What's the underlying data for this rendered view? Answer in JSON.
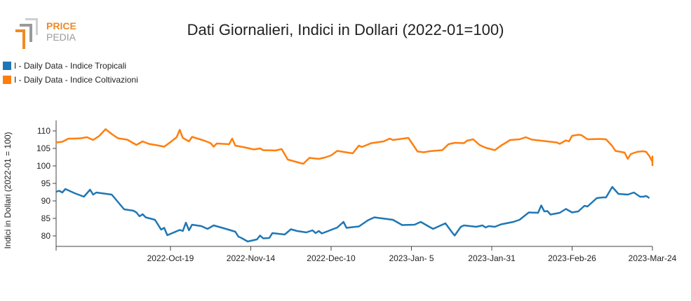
{
  "brand": {
    "line1": "PRICE",
    "line2": "PEDIA"
  },
  "chart_data": {
    "type": "line",
    "title": "Dati Giornalieri, Indici in Dollari (2022-01=100)",
    "xlabel": "",
    "ylabel": "Indici in Dollari (2022-01 = 100)",
    "ylim": [
      77,
      113
    ],
    "yticks": [
      80,
      85,
      90,
      95,
      100,
      105,
      110
    ],
    "xlim": [
      "2022-09-12",
      "2023-03-24"
    ],
    "xticks": [
      {
        "date": "2022-10-19",
        "label": "2022-Oct-19"
      },
      {
        "date": "2022-11-14",
        "label": "2022-Nov-14"
      },
      {
        "date": "2022-12-10",
        "label": "2022-Dec-10"
      },
      {
        "date": "2023-01-05",
        "label": "2023-Jan- 5"
      },
      {
        "date": "2023-01-31",
        "label": "2023-Jan-31"
      },
      {
        "date": "2023-02-26",
        "label": "2023-Feb-26"
      },
      {
        "date": "2023-03-24",
        "label": "2023-Mar-24"
      }
    ],
    "grid": false,
    "legend_position": "top-left",
    "series": [
      {
        "name": "I - Daily Data - Indice Tropicali",
        "color": "#1f77b4",
        "points": [
          [
            "2022-09-12",
            92.6
          ],
          [
            "2022-09-13",
            92.9
          ],
          [
            "2022-09-14",
            92.4
          ],
          [
            "2022-09-15",
            93.4
          ],
          [
            "2022-09-16",
            93.0
          ],
          [
            "2022-09-18",
            92.2
          ],
          [
            "2022-09-21",
            91.2
          ],
          [
            "2022-09-23",
            93.2
          ],
          [
            "2022-09-24",
            91.8
          ],
          [
            "2022-09-25",
            92.4
          ],
          [
            "2022-09-30",
            91.8
          ],
          [
            "2022-10-02",
            89.7
          ],
          [
            "2022-10-04",
            87.6
          ],
          [
            "2022-10-07",
            87.2
          ],
          [
            "2022-10-08",
            86.7
          ],
          [
            "2022-10-09",
            85.6
          ],
          [
            "2022-10-10",
            86.2
          ],
          [
            "2022-10-11",
            85.3
          ],
          [
            "2022-10-14",
            84.6
          ],
          [
            "2022-10-16",
            81.8
          ],
          [
            "2022-10-17",
            82.3
          ],
          [
            "2022-10-18",
            80.2
          ],
          [
            "2022-10-22",
            81.7
          ],
          [
            "2022-10-23",
            81.4
          ],
          [
            "2022-10-24",
            83.8
          ],
          [
            "2022-10-25",
            81.6
          ],
          [
            "2022-10-26",
            83.2
          ],
          [
            "2022-10-29",
            82.8
          ],
          [
            "2022-10-31",
            82.0
          ],
          [
            "2022-11-02",
            83.0
          ],
          [
            "2022-11-06",
            82.0
          ],
          [
            "2022-11-09",
            81.2
          ],
          [
            "2022-11-10",
            79.8
          ],
          [
            "2022-11-11",
            79.4
          ],
          [
            "2022-11-13",
            78.4
          ],
          [
            "2022-11-16",
            79.0
          ],
          [
            "2022-11-17",
            80.1
          ],
          [
            "2022-11-18",
            79.3
          ],
          [
            "2022-11-20",
            79.4
          ],
          [
            "2022-11-21",
            80.8
          ],
          [
            "2022-11-25",
            80.4
          ],
          [
            "2022-11-27",
            81.9
          ],
          [
            "2022-11-29",
            81.4
          ],
          [
            "2022-12-02",
            81.0
          ],
          [
            "2022-12-04",
            81.6
          ],
          [
            "2022-12-05",
            80.8
          ],
          [
            "2022-12-06",
            81.4
          ],
          [
            "2022-12-07",
            80.7
          ],
          [
            "2022-12-12",
            82.4
          ],
          [
            "2022-12-14",
            84.0
          ],
          [
            "2022-12-15",
            82.3
          ],
          [
            "2022-12-19",
            82.7
          ],
          [
            "2022-12-22",
            84.5
          ],
          [
            "2022-12-24",
            85.3
          ],
          [
            "2022-12-30",
            84.6
          ],
          [
            "2023-01-02",
            83.1
          ],
          [
            "2023-01-06",
            83.2
          ],
          [
            "2023-01-08",
            84.0
          ],
          [
            "2023-01-12",
            82.0
          ],
          [
            "2023-01-16",
            83.6
          ],
          [
            "2023-01-18",
            81.2
          ],
          [
            "2023-01-19",
            80.1
          ],
          [
            "2023-01-21",
            82.6
          ],
          [
            "2023-01-22",
            83.0
          ],
          [
            "2023-01-26",
            82.6
          ],
          [
            "2023-01-28",
            83.0
          ],
          [
            "2023-01-29",
            82.4
          ],
          [
            "2023-01-30",
            82.8
          ],
          [
            "2023-02-01",
            82.6
          ],
          [
            "2023-02-03",
            83.3
          ],
          [
            "2023-02-07",
            84.0
          ],
          [
            "2023-02-09",
            84.6
          ],
          [
            "2023-02-12",
            86.7
          ],
          [
            "2023-02-15",
            86.6
          ],
          [
            "2023-02-16",
            88.7
          ],
          [
            "2023-02-17",
            87.0
          ],
          [
            "2023-02-18",
            87.1
          ],
          [
            "2023-02-19",
            86.1
          ],
          [
            "2023-02-22",
            86.6
          ],
          [
            "2023-02-24",
            87.7
          ],
          [
            "2023-02-26",
            86.7
          ],
          [
            "2023-02-28",
            87.0
          ],
          [
            "2023-03-02",
            88.6
          ],
          [
            "2023-03-03",
            88.4
          ],
          [
            "2023-03-06",
            90.8
          ],
          [
            "2023-03-08",
            91.0
          ],
          [
            "2023-03-09",
            91.0
          ],
          [
            "2023-03-11",
            94.0
          ],
          [
            "2023-03-13",
            92.0
          ],
          [
            "2023-03-16",
            91.8
          ],
          [
            "2023-03-18",
            92.4
          ],
          [
            "2023-03-20",
            91.2
          ],
          [
            "2023-03-21",
            91.2
          ],
          [
            "2023-03-22",
            91.4
          ],
          [
            "2023-03-23",
            90.8
          ]
        ]
      },
      {
        "name": "I - Daily Data - Indice Coltivazioni",
        "color": "#ff7f0e",
        "points": [
          [
            "2022-09-12",
            106.7
          ],
          [
            "2022-09-14",
            106.9
          ],
          [
            "2022-09-16",
            107.8
          ],
          [
            "2022-09-18",
            107.8
          ],
          [
            "2022-09-20",
            107.9
          ],
          [
            "2022-09-22",
            108.2
          ],
          [
            "2022-09-24",
            107.4
          ],
          [
            "2022-09-26",
            108.6
          ],
          [
            "2022-09-28",
            110.5
          ],
          [
            "2022-09-30",
            109.1
          ],
          [
            "2022-10-02",
            107.9
          ],
          [
            "2022-10-05",
            107.5
          ],
          [
            "2022-10-08",
            106.0
          ],
          [
            "2022-10-10",
            107.0
          ],
          [
            "2022-10-12",
            106.3
          ],
          [
            "2022-10-14",
            106.0
          ],
          [
            "2022-10-17",
            105.5
          ],
          [
            "2022-10-19",
            106.8
          ],
          [
            "2022-10-21",
            108.2
          ],
          [
            "2022-10-22",
            110.3
          ],
          [
            "2022-10-23",
            108.0
          ],
          [
            "2022-10-25",
            107.0
          ],
          [
            "2022-10-26",
            108.3
          ],
          [
            "2022-10-30",
            107.2
          ],
          [
            "2022-11-01",
            106.5
          ],
          [
            "2022-11-02",
            105.5
          ],
          [
            "2022-11-03",
            106.4
          ],
          [
            "2022-11-07",
            106.2
          ],
          [
            "2022-11-08",
            107.8
          ],
          [
            "2022-11-09",
            105.8
          ],
          [
            "2022-11-12",
            105.3
          ],
          [
            "2022-11-15",
            104.7
          ],
          [
            "2022-11-17",
            105.0
          ],
          [
            "2022-11-18",
            104.5
          ],
          [
            "2022-11-22",
            104.4
          ],
          [
            "2022-11-24",
            104.8
          ],
          [
            "2022-11-26",
            101.8
          ],
          [
            "2022-12-01",
            100.6
          ],
          [
            "2022-12-03",
            102.3
          ],
          [
            "2022-12-06",
            102.0
          ],
          [
            "2022-12-08",
            102.4
          ],
          [
            "2022-12-10",
            103.0
          ],
          [
            "2022-12-12",
            104.3
          ],
          [
            "2022-12-14",
            104.0
          ],
          [
            "2022-12-17",
            103.6
          ],
          [
            "2022-12-19",
            105.8
          ],
          [
            "2022-12-20",
            105.4
          ],
          [
            "2022-12-23",
            106.5
          ],
          [
            "2022-12-27",
            107.0
          ],
          [
            "2022-12-29",
            107.8
          ],
          [
            "2022-12-30",
            107.4
          ],
          [
            "2023-01-04",
            108.0
          ],
          [
            "2023-01-07",
            104.1
          ],
          [
            "2023-01-09",
            103.9
          ],
          [
            "2023-01-11",
            104.2
          ],
          [
            "2023-01-15",
            104.5
          ],
          [
            "2023-01-17",
            106.2
          ],
          [
            "2023-01-19",
            106.6
          ],
          [
            "2023-01-22",
            106.5
          ],
          [
            "2023-01-23",
            107.2
          ],
          [
            "2023-01-25",
            107.6
          ],
          [
            "2023-01-27",
            106.0
          ],
          [
            "2023-01-29",
            105.2
          ],
          [
            "2023-02-01",
            104.5
          ],
          [
            "2023-02-03",
            105.8
          ],
          [
            "2023-02-06",
            107.4
          ],
          [
            "2023-02-09",
            107.6
          ],
          [
            "2023-02-11",
            108.2
          ],
          [
            "2023-02-13",
            107.5
          ],
          [
            "2023-02-16",
            107.2
          ],
          [
            "2023-02-21",
            106.7
          ],
          [
            "2023-02-22",
            106.3
          ],
          [
            "2023-02-24",
            107.3
          ],
          [
            "2023-02-25",
            107.0
          ],
          [
            "2023-02-26",
            108.6
          ],
          [
            "2023-02-28",
            108.9
          ],
          [
            "2023-03-01",
            108.8
          ],
          [
            "2023-03-03",
            107.6
          ],
          [
            "2023-03-07",
            107.7
          ],
          [
            "2023-03-09",
            107.6
          ],
          [
            "2023-03-11",
            105.7
          ],
          [
            "2023-03-12",
            104.3
          ],
          [
            "2023-03-15",
            103.8
          ],
          [
            "2023-03-16",
            102.0
          ],
          [
            "2023-03-17",
            103.4
          ],
          [
            "2023-03-19",
            104.0
          ],
          [
            "2023-03-21",
            104.2
          ],
          [
            "2023-03-22",
            104.0
          ],
          [
            "2023-03-23",
            102.8
          ],
          [
            "2023-03-24",
            101.2
          ],
          [
            "2023-03-25",
            101.6
          ],
          [
            "2023-03-26",
            101.5
          ],
          [
            "2023-03-27",
            102.0
          ],
          [
            "2023-03-28",
            102.7
          ],
          [
            "2023-03-29",
            102.5
          ],
          [
            "2023-03-30",
            101.7
          ],
          [
            "2023-03-31",
            101.1
          ],
          [
            "2023-04-01",
            100.2
          ],
          [
            "2023-04-02",
            101.7
          ]
        ]
      }
    ]
  }
}
